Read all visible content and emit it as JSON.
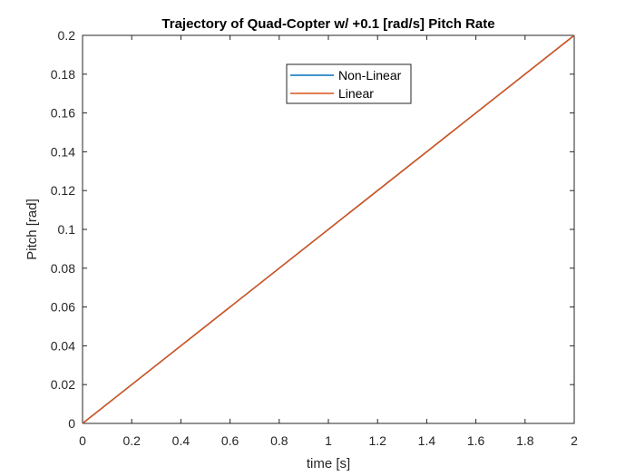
{
  "chart_data": {
    "type": "line",
    "title": "Trajectory of Quad-Copter w/ +0.1 [rad/s] Pitch Rate",
    "xlabel": "time [s]",
    "ylabel": "Pitch [rad]",
    "xlim": [
      0,
      2
    ],
    "ylim": [
      0,
      0.2
    ],
    "xticks": [
      0,
      0.2,
      0.4,
      0.6,
      0.8,
      1,
      1.2,
      1.4,
      1.6,
      1.8,
      2
    ],
    "yticks": [
      0,
      0.02,
      0.04,
      0.06,
      0.08,
      0.1,
      0.12,
      0.14,
      0.16,
      0.18,
      0.2
    ],
    "xtick_labels": [
      "0",
      "0.2",
      "0.4",
      "0.6",
      "0.8",
      "1",
      "1.2",
      "1.4",
      "1.6",
      "1.8",
      "2"
    ],
    "ytick_labels": [
      "0",
      "0.02",
      "0.04",
      "0.06",
      "0.08",
      "0.1",
      "0.12",
      "0.14",
      "0.16",
      "0.18",
      "0.2"
    ],
    "grid": false,
    "legend_position": "top-center",
    "series": [
      {
        "name": "Non-Linear",
        "color": "#0072BD",
        "x": [
          0,
          0.5,
          1,
          1.5,
          2
        ],
        "y": [
          0,
          0.05,
          0.1,
          0.15,
          0.2
        ]
      },
      {
        "name": "Linear",
        "color": "#D95319",
        "x": [
          0,
          0.5,
          1,
          1.5,
          2
        ],
        "y": [
          0,
          0.05,
          0.1,
          0.15,
          0.2
        ]
      }
    ]
  }
}
